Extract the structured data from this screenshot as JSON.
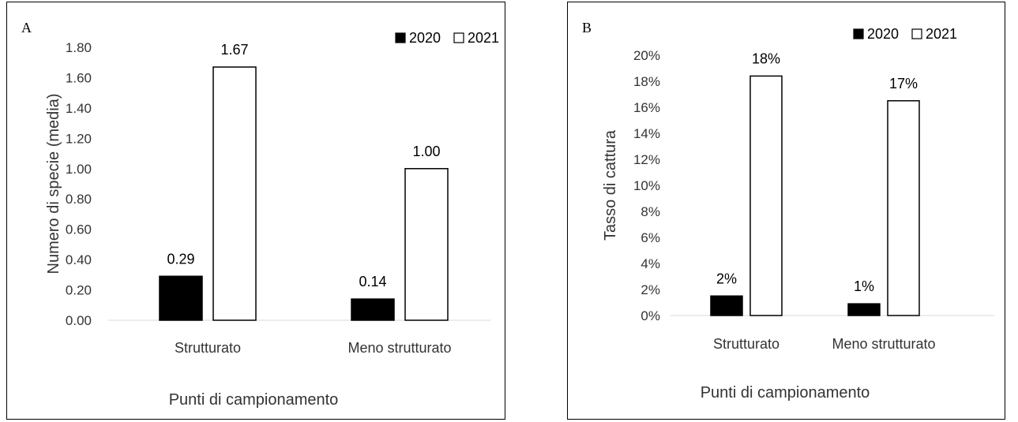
{
  "chart_data": [
    {
      "type": "bar",
      "panel_label": "A",
      "categories": [
        "Strutturato",
        "Meno strutturato"
      ],
      "series": [
        {
          "name": "2020",
          "values": [
            0.29,
            0.14
          ],
          "labels": [
            "0.29",
            "0.14"
          ],
          "color": "#000000"
        },
        {
          "name": "2021",
          "values": [
            1.67,
            1.0
          ],
          "labels": [
            "1.67",
            "1.00"
          ],
          "color": "#ffffff"
        }
      ],
      "ylabel": "Numero di specie (media)",
      "xlabel": "Punti di campionamento",
      "ylim": [
        0,
        1.8
      ],
      "yticks": [
        "0.00",
        "0.20",
        "0.40",
        "0.60",
        "0.80",
        "1.00",
        "1.20",
        "1.40",
        "1.60",
        "1.80"
      ],
      "legend": "top-right",
      "grid": false
    },
    {
      "type": "bar",
      "panel_label": "B",
      "categories": [
        "Strutturato",
        "Meno strutturato"
      ],
      "series": [
        {
          "name": "2020",
          "values": [
            1.5,
            0.9
          ],
          "labels": [
            "2%",
            "1%"
          ],
          "color": "#000000"
        },
        {
          "name": "2021",
          "values": [
            18.4,
            16.5
          ],
          "labels": [
            "18%",
            "17%"
          ],
          "color": "#ffffff"
        }
      ],
      "ylabel": "Tasso di cattura",
      "xlabel": "Punti di campionamento",
      "ylim": [
        0,
        20
      ],
      "yticks": [
        "0%",
        "2%",
        "4%",
        "6%",
        "8%",
        "10%",
        "12%",
        "14%",
        "16%",
        "18%",
        "20%"
      ],
      "legend": "top-right",
      "grid": false
    }
  ]
}
